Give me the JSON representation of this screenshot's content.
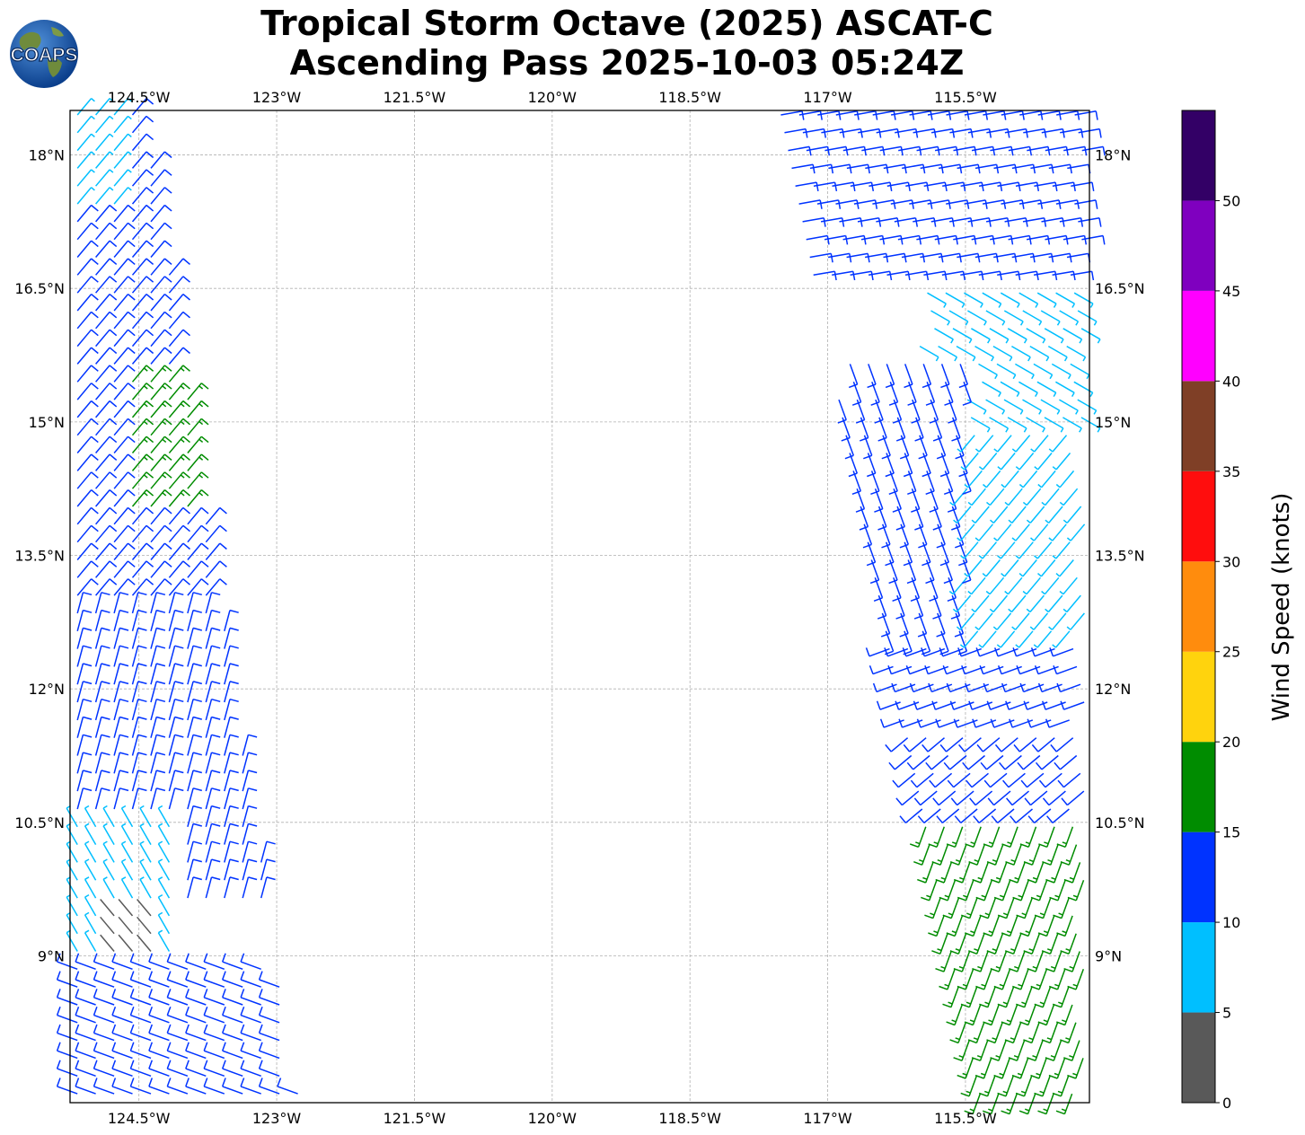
{
  "title": {
    "line1": "Tropical Storm Octave (2025) ASCAT-C",
    "line2": "Ascending Pass 2025-10-03 05:24Z"
  },
  "logo": {
    "text": "COAPS",
    "icon": "globe-icon"
  },
  "chart_data": {
    "type": "wind-barb-map",
    "lon_range": [
      -125.25,
      -114.15
    ],
    "lat_range": [
      7.35,
      18.5
    ],
    "lon_ticks": [
      "124.5°W",
      "123°W",
      "121.5°W",
      "120°W",
      "118.5°W",
      "117°W",
      "115.5°W"
    ],
    "lat_ticks": [
      "18°N",
      "16.5°N",
      "15°N",
      "13.5°N",
      "12°N",
      "10.5°N",
      "9°N"
    ],
    "grid": true,
    "colorbar": {
      "label": "Wind Speed (knots)",
      "ticks": [
        "0",
        "5",
        "10",
        "15",
        "20",
        "25",
        "30",
        "35",
        "40",
        "45",
        "50"
      ],
      "max": 55,
      "bins": [
        {
          "min": 0,
          "max": 5,
          "color": "#595959"
        },
        {
          "min": 5,
          "max": 10,
          "color": "#00bfff"
        },
        {
          "min": 10,
          "max": 15,
          "color": "#0033ff"
        },
        {
          "min": 15,
          "max": 20,
          "color": "#008c00"
        },
        {
          "min": 20,
          "max": 25,
          "color": "#ffd30d"
        },
        {
          "min": 25,
          "max": 30,
          "color": "#ff8c0d"
        },
        {
          "min": 30,
          "max": 35,
          "color": "#ff0d0d"
        },
        {
          "min": 35,
          "max": 40,
          "color": "#7f3f26"
        },
        {
          "min": 40,
          "max": 45,
          "color": "#ff00ff"
        },
        {
          "min": 45,
          "max": 50,
          "color": "#7f00bf"
        },
        {
          "min": 50,
          "max": 55,
          "color": "#330066"
        }
      ]
    },
    "swaths": [
      {
        "name": "west",
        "lat_min": 7.35,
        "lat_max": 18.5,
        "lon_west": -125.25,
        "lon_east_at_lat_max": -124.4,
        "lon_east_at_lat_min": -122.7
      },
      {
        "name": "east",
        "lat_min": 7.35,
        "lat_max": 18.5,
        "lon_west_at_lat_max": -117.6,
        "lon_west_at_lat_min": -115.4,
        "lon_east": -114.15
      }
    ],
    "wind_regions": [
      {
        "swath": "west",
        "lat": [
          13.0,
          18.5
        ],
        "dir_deg": 40,
        "speed": 12
      },
      {
        "swath": "west",
        "lat": [
          9.5,
          13.0
        ],
        "dir_deg": 15,
        "speed": 12
      },
      {
        "swath": "west",
        "lat": [
          14.0,
          15.5
        ],
        "lon": [
          -124.6,
          -123.6
        ],
        "dir_deg": 40,
        "speed": 17
      },
      {
        "swath": "west",
        "lat": [
          17.3,
          18.5
        ],
        "lon": [
          -125.25,
          -124.6
        ],
        "dir_deg": 40,
        "speed": 8
      },
      {
        "swath": "west",
        "lat": [
          9.0,
          10.5
        ],
        "lon": [
          -125.25,
          -124.0
        ],
        "dir_deg": 330,
        "speed": 8
      },
      {
        "swath": "west",
        "lat": [
          8.8,
          9.6
        ],
        "lon": [
          -124.9,
          -124.2
        ],
        "dir_deg": 320,
        "speed": 3
      },
      {
        "swath": "west",
        "lat": [
          7.35,
          9.0
        ],
        "dir_deg": 290,
        "speed": 12
      },
      {
        "swath": "east",
        "lat": [
          16.5,
          18.5
        ],
        "dir_deg": 80,
        "speed": 12
      },
      {
        "swath": "east",
        "lat": [
          15.0,
          16.5
        ],
        "lon": [
          -116.0,
          -114.15
        ],
        "dir_deg": 120,
        "speed": 8
      },
      {
        "swath": "east",
        "lat": [
          12.3,
          15.8
        ],
        "lon": [
          -116.9,
          -115.5
        ],
        "dir_deg": 160,
        "speed": 12
      },
      {
        "swath": "east",
        "lat": [
          12.0,
          15.0
        ],
        "lon": [
          -115.5,
          -114.15
        ],
        "dir_deg": 220,
        "speed": 8
      },
      {
        "swath": "east",
        "lat": [
          11.5,
          12.5
        ],
        "dir_deg": 250,
        "speed": 12
      },
      {
        "swath": "east",
        "lat": [
          10.5,
          11.5
        ],
        "dir_deg": 230,
        "speed": 12
      },
      {
        "swath": "east",
        "lat": [
          7.35,
          10.5
        ],
        "dir_deg": 200,
        "speed": 17
      }
    ]
  }
}
